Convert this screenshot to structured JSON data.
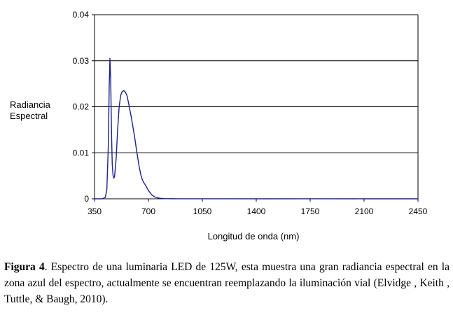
{
  "chart_data": {
    "type": "line",
    "xlabel": "Longitud de onda (nm)",
    "ylabel_lines": [
      "Radiancia",
      "Espectral"
    ],
    "x_ticks": [
      350,
      700,
      1050,
      1400,
      1750,
      2100,
      2450
    ],
    "y_ticks": [
      "0",
      "0.01",
      "0.02",
      "0.03",
      "0.04"
    ],
    "y_tick_values": [
      0,
      0.01,
      0.02,
      0.03,
      0.04
    ],
    "xlim": [
      350,
      2450
    ],
    "ylim": [
      0,
      0.04
    ],
    "grid": "horizontal",
    "line_color": "#1f1f8c",
    "series": [
      {
        "x": [
          350,
          400,
          420,
          430,
          440,
          445,
          450,
          455,
          460,
          465,
          470,
          475,
          480,
          490,
          500,
          510,
          520,
          530,
          540,
          550,
          560,
          570,
          580,
          590,
          600,
          610,
          620,
          630,
          640,
          650,
          660,
          670,
          680,
          690,
          700,
          720,
          740,
          760,
          780,
          800,
          850,
          900,
          1000,
          1200,
          1500,
          1800,
          2100,
          2450
        ],
        "y": [
          0,
          0,
          0.0003,
          0.002,
          0.012,
          0.024,
          0.0305,
          0.026,
          0.015,
          0.0075,
          0.0052,
          0.0045,
          0.0048,
          0.0085,
          0.015,
          0.02,
          0.0225,
          0.0233,
          0.0235,
          0.0232,
          0.0225,
          0.021,
          0.0192,
          0.0175,
          0.0155,
          0.0135,
          0.0112,
          0.009,
          0.007,
          0.0053,
          0.0042,
          0.0035,
          0.003,
          0.0024,
          0.0018,
          0.0009,
          0.0004,
          0.0002,
          0.0001,
          5e-05,
          2e-05,
          1e-05,
          1e-05,
          1e-05,
          0,
          1e-05,
          0,
          0
        ]
      }
    ]
  },
  "caption": {
    "label": "Figura 4",
    "text": ". Espectro de una luminaria LED de 125W, esta muestra una gran radiancia espectral en la zona azul del espectro, actualmente se encuentran reemplazando la iluminación vial (Elvidge , Keith , Tuttle, & Baugh, 2010)."
  }
}
